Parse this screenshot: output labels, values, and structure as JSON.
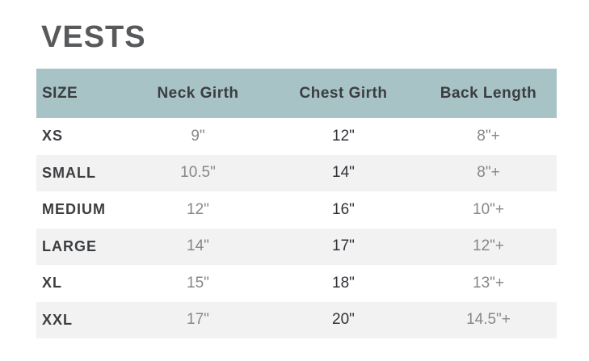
{
  "page": {
    "title": "VESTS"
  },
  "colors": {
    "page_bg": "#ffffff",
    "title_text": "#58595b",
    "header_bg": "#a7c3c6",
    "header_text": "#3b3d40",
    "size_text": "#3b3d40",
    "value_muted": "#87878a",
    "value_dark": "#303236",
    "stripe_bg": "#f2f2f2"
  },
  "table": {
    "columns": [
      "SIZE",
      "Neck Girth",
      "Chest Girth",
      "Back Length"
    ],
    "rows": [
      {
        "size": "XS",
        "neck": "9\"",
        "chest": "12\"",
        "back": "8\"+"
      },
      {
        "size": "SMALL",
        "neck": "10.5\"",
        "chest": "14\"",
        "back": "8\"+"
      },
      {
        "size": "MEDIUM",
        "neck": "12\"",
        "chest": "16\"",
        "back": "10\"+"
      },
      {
        "size": "LARGE",
        "neck": "14\"",
        "chest": "17\"",
        "back": "12\"+"
      },
      {
        "size": "XL",
        "neck": "15\"",
        "chest": "18\"",
        "back": "13\"+"
      },
      {
        "size": "XXL",
        "neck": "17\"",
        "chest": "20\"",
        "back": "14.5\"+"
      }
    ]
  }
}
